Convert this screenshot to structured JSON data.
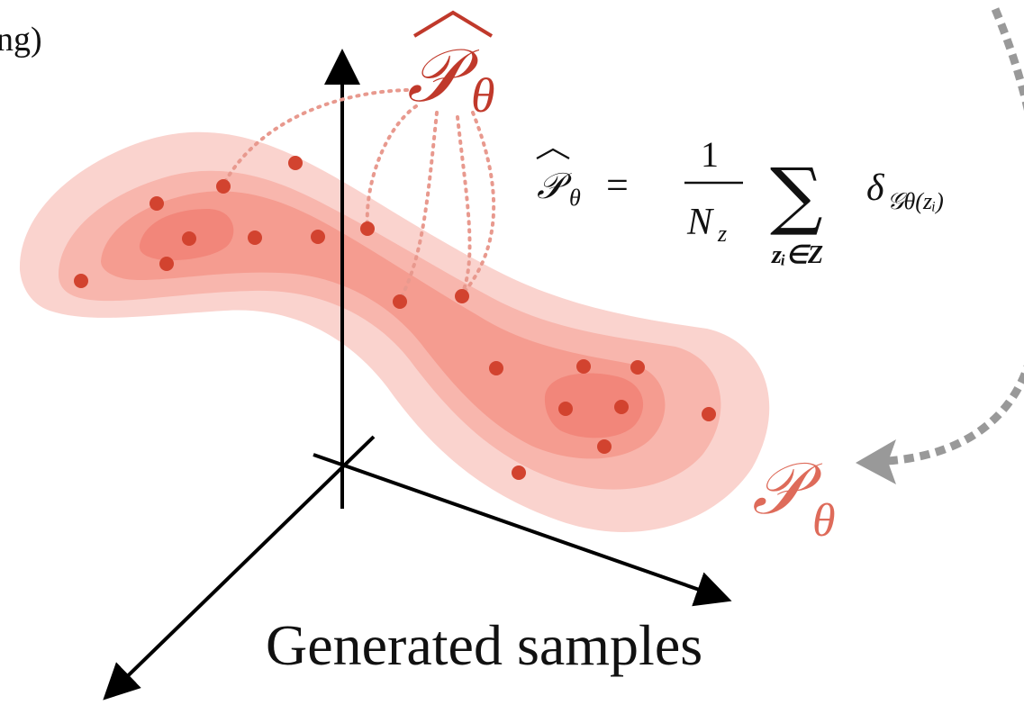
{
  "caption": "Generated samples",
  "top_left_fragment": "ng)",
  "labels": {
    "empirical": {
      "symbol": "𝒫",
      "subscript": "θ"
    },
    "model": {
      "symbol": "𝒫",
      "subscript": "θ"
    }
  },
  "formula": {
    "lhs_symbol": "𝒫",
    "lhs_subscript": "θ",
    "equals": "=",
    "numerator": "1",
    "denominator": "N",
    "denominator_subscript": "z",
    "sum": "∑",
    "sum_range": "zᵢ∈Z",
    "delta": "δ",
    "delta_subscript": "𝒢θ(zᵢ)"
  },
  "colors": {
    "empirical_label": "#c0392b",
    "model_label": "#de6b5a",
    "contour_1": "#fad3ce",
    "contour_2": "#f8b6ad",
    "contour_3": "#f59c90",
    "contour_4": "#f2867a",
    "sample_point": "#d2432f",
    "leader_line": "#e8998e",
    "axis": "#000000",
    "dashed_arrow": "#999999"
  }
}
